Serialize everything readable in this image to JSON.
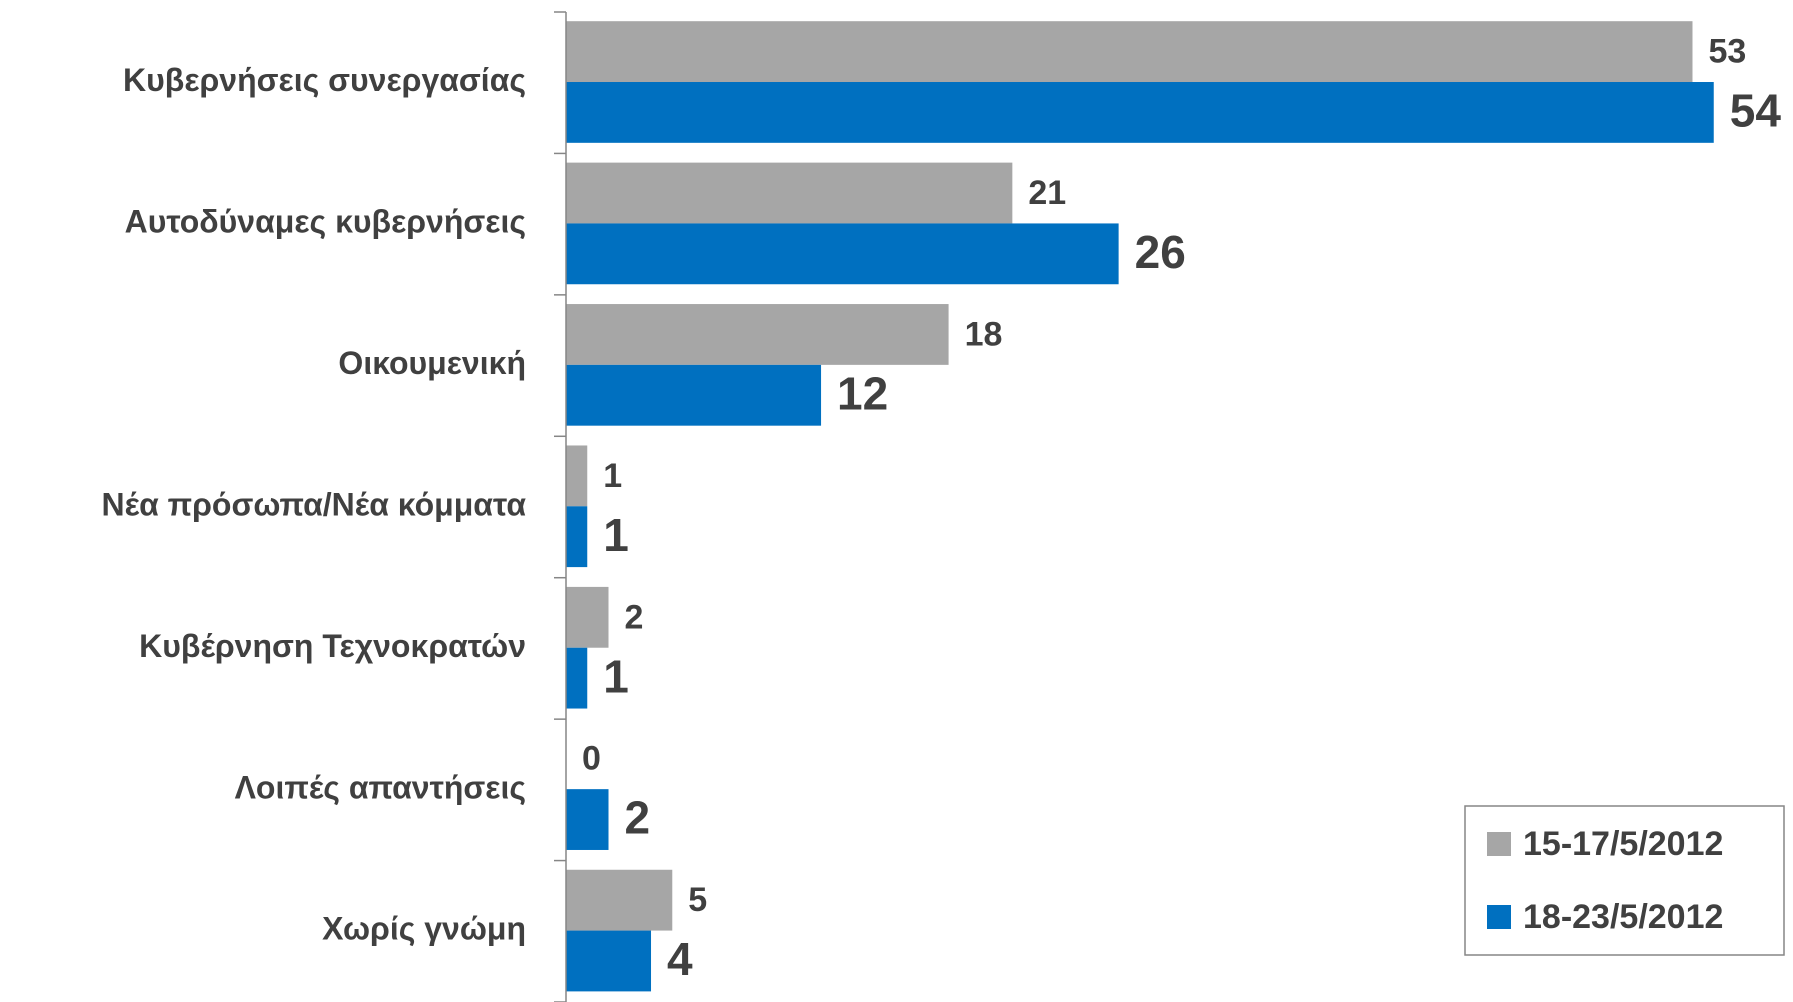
{
  "chart_data": {
    "type": "bar",
    "orientation": "horizontal",
    "categories": [
      "Κυβερνήσεις συνεργασίας",
      "Αυτοδύναμες κυβερνήσεις",
      "Οικουμενική",
      "Νέα πρόσωπα/Νέα κόμματα",
      "Κυβέρνηση Τεχνοκρατών",
      "Λοιπές απαντήσεις",
      "Χωρίς γνώμη"
    ],
    "series": [
      {
        "name": "15-17/5/2012",
        "color": "#a6a6a6",
        "values": [
          53,
          21,
          18,
          1,
          2,
          0,
          5
        ]
      },
      {
        "name": "18-23/5/2012",
        "color": "#0070c0",
        "values": [
          54,
          26,
          12,
          1,
          1,
          2,
          4
        ]
      }
    ],
    "xlim": [
      0,
      55
    ],
    "legend": "lower right"
  }
}
